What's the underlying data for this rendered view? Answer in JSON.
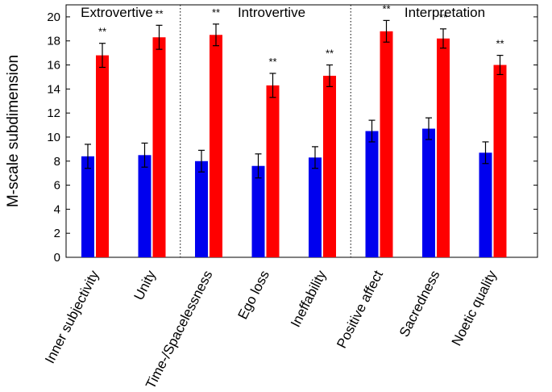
{
  "chart_data": {
    "type": "bar",
    "ylabel": "M-scale subdimension",
    "xlabel": "",
    "ylim": [
      0,
      21
    ],
    "yticks": [
      0,
      2,
      4,
      6,
      8,
      10,
      12,
      14,
      16,
      18,
      20
    ],
    "categories": [
      "Inner subjectivity",
      "Unity",
      "Time-/Spacelessness",
      "Ego loss",
      "Ineffability",
      "Positive affect",
      "Sacredness",
      "Noetic quality"
    ],
    "groups": [
      {
        "label": "Extrovertive",
        "categories": [
          "Inner subjectivity",
          "Unity"
        ]
      },
      {
        "label": "Introvertive",
        "categories": [
          "Time-/Spacelessness",
          "Ego loss",
          "Ineffability"
        ]
      },
      {
        "label": "Interpretation",
        "categories": [
          "Positive affect",
          "Sacredness",
          "Noetic quality"
        ]
      }
    ],
    "series": [
      {
        "color": "#0000ee",
        "values": [
          8.4,
          8.5,
          8.0,
          7.6,
          8.3,
          10.5,
          10.7,
          8.7
        ],
        "errors": [
          1.0,
          1.0,
          0.9,
          1.0,
          0.9,
          0.9,
          0.9,
          0.9
        ]
      },
      {
        "color": "#ff0000",
        "values": [
          16.8,
          18.3,
          18.5,
          14.3,
          15.1,
          18.8,
          18.2,
          16.0
        ],
        "errors": [
          1.0,
          1.0,
          0.9,
          1.0,
          0.9,
          0.9,
          0.8,
          0.8
        ]
      }
    ],
    "significance": [
      "**",
      "**",
      "**",
      "**",
      "**",
      "**",
      "**",
      "**"
    ],
    "grid": false,
    "legend": "none"
  }
}
